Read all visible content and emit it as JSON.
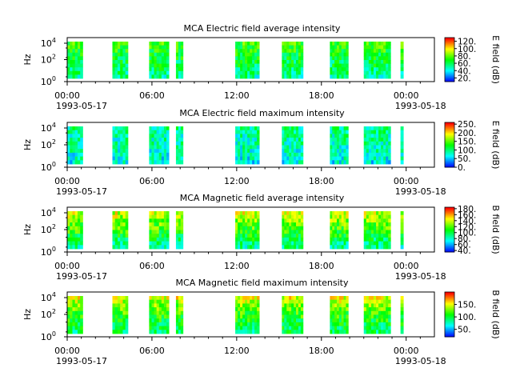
{
  "colorscale": [
    "#0000ff",
    "#0080ff",
    "#00ffff",
    "#00ff80",
    "#00ff00",
    "#80ff00",
    "#ffff00",
    "#ff8000",
    "#ff0000"
  ],
  "chart_data": [
    {
      "type": "heatmap",
      "title": "MCA  Electric field average intensity",
      "ylabel": "Hz",
      "y_scale": "log",
      "yticks": [
        "10^0",
        "10^2",
        "10^4"
      ],
      "xlim": [
        "1993-05-17 00:00",
        "1993-05-18 02:00"
      ],
      "xticks": [
        "00:00",
        "06:00",
        "12:00",
        "18:00",
        "00:00"
      ],
      "xtick_dates": [
        "1993-05-17",
        "1993-05-18"
      ],
      "colorbar_label": "E field (dB)",
      "colorbar_range": [
        10,
        130
      ],
      "colorbar_ticks": [
        "20.",
        "40.",
        "60.",
        "80.",
        "100.",
        "120."
      ],
      "profile": [
        75,
        72,
        70,
        66,
        64,
        62,
        60,
        58,
        55,
        52
      ],
      "segments": [
        {
          "start": 0.0,
          "end": 1.1
        },
        {
          "start": 3.2,
          "end": 4.3
        },
        {
          "start": 5.8,
          "end": 7.2
        },
        {
          "start": 7.7,
          "end": 8.2
        },
        {
          "start": 11.9,
          "end": 13.6
        },
        {
          "start": 15.2,
          "end": 16.7
        },
        {
          "start": 18.6,
          "end": 19.9
        },
        {
          "start": 21.0,
          "end": 22.9
        },
        {
          "start": 23.6,
          "end": 23.8
        }
      ]
    },
    {
      "type": "heatmap",
      "title": "MCA  Electric field maximum intensity",
      "ylabel": "Hz",
      "y_scale": "log",
      "yticks": [
        "10^0",
        "10^2",
        "10^4"
      ],
      "xlim": [
        "1993-05-17 00:00",
        "1993-05-18 02:00"
      ],
      "xticks": [
        "00:00",
        "06:00",
        "12:00",
        "18:00",
        "00:00"
      ],
      "xtick_dates": [
        "1993-05-17",
        "1993-05-18"
      ],
      "colorbar_label": "E field (dB)",
      "colorbar_range": [
        0,
        260
      ],
      "colorbar_ticks": [
        "0.",
        "50.",
        "100.",
        "150.",
        "200.",
        "250."
      ],
      "profile": [
        95,
        92,
        90,
        88,
        86,
        84,
        82,
        78,
        74,
        70
      ],
      "segments": [
        {
          "start": 0.0,
          "end": 1.1
        },
        {
          "start": 3.2,
          "end": 4.3
        },
        {
          "start": 5.8,
          "end": 7.2
        },
        {
          "start": 7.7,
          "end": 8.2
        },
        {
          "start": 11.9,
          "end": 13.6
        },
        {
          "start": 15.2,
          "end": 16.7
        },
        {
          "start": 18.6,
          "end": 19.9
        },
        {
          "start": 21.0,
          "end": 22.9
        },
        {
          "start": 23.6,
          "end": 23.8
        }
      ]
    },
    {
      "type": "heatmap",
      "title": "MCA  Magnetic field average intensity",
      "ylabel": "Hz",
      "y_scale": "log",
      "yticks": [
        "10^0",
        "10^2",
        "10^4"
      ],
      "xlim": [
        "1993-05-17 00:00",
        "1993-05-18 02:00"
      ],
      "xticks": [
        "00:00",
        "06:00",
        "12:00",
        "18:00",
        "00:00"
      ],
      "xtick_dates": [
        "1993-05-17",
        "1993-05-18"
      ],
      "colorbar_label": "B field (dB)",
      "colorbar_range": [
        35,
        185
      ],
      "colorbar_ticks": [
        "40.",
        "60.",
        "80.",
        "100.",
        "120.",
        "140.",
        "160.",
        "180."
      ],
      "profile": [
        140,
        135,
        128,
        122,
        118,
        112,
        105,
        98,
        92,
        88
      ],
      "segments": [
        {
          "start": 0.0,
          "end": 1.1
        },
        {
          "start": 3.2,
          "end": 4.3
        },
        {
          "start": 5.8,
          "end": 7.2
        },
        {
          "start": 7.7,
          "end": 8.2
        },
        {
          "start": 11.9,
          "end": 13.6
        },
        {
          "start": 15.2,
          "end": 16.7
        },
        {
          "start": 18.6,
          "end": 19.9
        },
        {
          "start": 21.0,
          "end": 22.9
        },
        {
          "start": 23.6,
          "end": 23.8
        }
      ]
    },
    {
      "type": "heatmap",
      "title": "MCA  Magnetic field maximum intensity",
      "ylabel": "Hz",
      "y_scale": "log",
      "yticks": [
        "10^0",
        "10^2",
        "10^4"
      ],
      "xlim": [
        "1993-05-17 00:00",
        "1993-05-18 02:00"
      ],
      "xticks": [
        "00:00",
        "06:00",
        "12:00",
        "18:00",
        "00:00"
      ],
      "xtick_dates": [
        "1993-05-17",
        "1993-05-18"
      ],
      "colorbar_label": "B field (dB)",
      "colorbar_range": [
        20,
        200
      ],
      "colorbar_ticks": [
        "50.",
        "100.",
        "150."
      ],
      "profile": [
        150,
        140,
        132,
        125,
        118,
        112,
        105,
        100,
        96,
        92
      ],
      "segments": [
        {
          "start": 0.0,
          "end": 1.1
        },
        {
          "start": 3.2,
          "end": 4.3
        },
        {
          "start": 5.8,
          "end": 7.2
        },
        {
          "start": 7.7,
          "end": 8.2
        },
        {
          "start": 11.9,
          "end": 13.6
        },
        {
          "start": 15.2,
          "end": 16.7
        },
        {
          "start": 18.6,
          "end": 19.9
        },
        {
          "start": 21.0,
          "end": 22.9
        },
        {
          "start": 23.6,
          "end": 23.8
        }
      ]
    }
  ]
}
